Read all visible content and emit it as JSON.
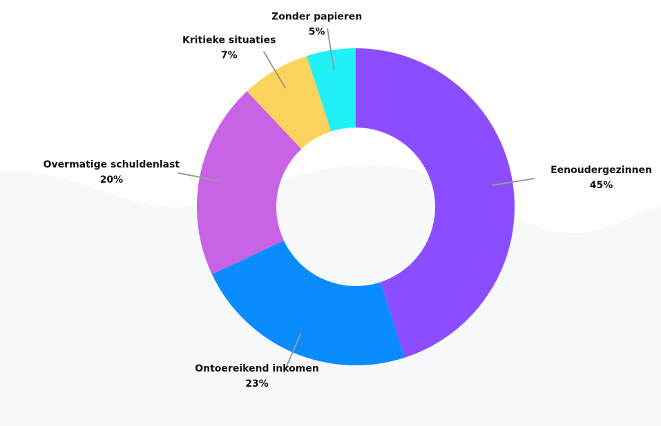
{
  "chart_data": {
    "type": "pie",
    "categories": [
      "Eenoudergezinnen",
      "Ontoereikend inkomen",
      "Overmatige schuldenlast",
      "Kritieke situaties",
      "Zonder papieren"
    ],
    "values": [
      45,
      23,
      20,
      7,
      5
    ],
    "value_labels": [
      "45%",
      "23%",
      "20%",
      "7%",
      "5%"
    ],
    "colors": [
      "#8b4dff",
      "#0a8cff",
      "#c863e6",
      "#fcd35c",
      "#1ff1f6"
    ],
    "donut": true
  }
}
